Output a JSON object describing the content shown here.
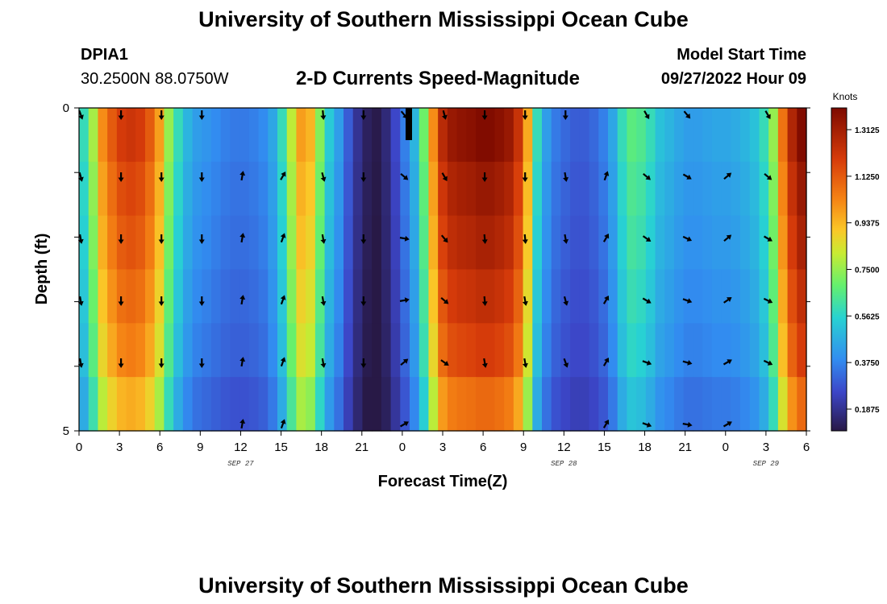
{
  "header": {
    "title": "University of Southern Mississippi Ocean Cube",
    "station": "DPIA1",
    "coords": "30.2500N  88.0750W",
    "subtitle": "2-D Currents Speed-Magnitude",
    "model_label": "Model Start Time",
    "model_time": "09/27/2022 Hour 09"
  },
  "footer": {
    "title": "University of Southern Mississippi Ocean Cube"
  },
  "chart_data": {
    "type": "heatmap",
    "title": "2-D Currents Speed-Magnitude",
    "xlabel": "Forecast Time(Z)",
    "ylabel": "Depth (ft)",
    "x_tick_labels": [
      "0",
      "3",
      "6",
      "9",
      "12",
      "15",
      "18",
      "21",
      "0",
      "3",
      "6",
      "9",
      "12",
      "15",
      "18",
      "21",
      "0",
      "3",
      "6"
    ],
    "day_labels": [
      {
        "label": "SEP 27",
        "at_tick": 4
      },
      {
        "label": "SEP 28",
        "at_tick": 12
      },
      {
        "label": "SEP 29",
        "at_tick": 17
      }
    ],
    "y_tick_labels": [
      "0",
      "5"
    ],
    "ylim": [
      0,
      5
    ],
    "colorbar": {
      "unit": "Knots",
      "min": 0.1,
      "max": 1.4,
      "tick_values": [
        0.1875,
        0.375,
        0.5625,
        0.75,
        0.9375,
        1.125,
        1.3125
      ],
      "tick_labels": [
        "0.1875",
        "0.3750",
        "0.5625",
        "0.7500",
        "0.9375",
        "1.1250",
        "1.3125"
      ]
    },
    "speed_profile_knots": [
      0.55,
      0.72,
      0.95,
      1.05,
      1.12,
      1.14,
      1.12,
      1.05,
      0.92,
      0.7,
      0.55,
      0.45,
      0.4,
      0.38,
      0.36,
      0.34,
      0.33,
      0.33,
      0.34,
      0.36,
      0.42,
      0.55,
      0.75,
      0.92,
      0.88,
      0.68,
      0.5,
      0.4,
      0.28,
      0.18,
      0.12,
      0.1,
      0.15,
      0.24,
      0.34,
      0.45,
      0.65,
      0.95,
      1.18,
      1.25,
      1.27,
      1.28,
      1.3,
      1.3,
      1.28,
      1.25,
      1.15,
      0.9,
      0.55,
      0.4,
      0.33,
      0.3,
      0.28,
      0.28,
      0.3,
      0.34,
      0.42,
      0.55,
      0.62,
      0.6,
      0.55,
      0.48,
      0.45,
      0.42,
      0.4,
      0.4,
      0.41,
      0.42,
      0.42,
      0.43,
      0.45,
      0.48,
      0.55,
      0.7,
      1.0,
      1.2,
      1.3
    ],
    "depth_factors": [
      1.07,
      1.03,
      1.0,
      0.96,
      0.92,
      0.84
    ],
    "arrow_columns": [
      "0",
      "3",
      "6",
      "9",
      "12",
      "15",
      "18",
      "21",
      "0",
      "3",
      "6",
      "9",
      "12",
      "15",
      "18",
      "21",
      "0",
      "3"
    ],
    "arrow_directions_deg": [
      [
        160,
        180,
        180,
        180,
        null,
        null,
        175,
        180,
        140,
        165,
        180,
        180,
        180,
        null,
        150,
        140,
        null,
        150
      ],
      [
        165,
        180,
        180,
        180,
        10,
        30,
        165,
        180,
        130,
        150,
        180,
        180,
        170,
        20,
        130,
        120,
        50,
        130
      ],
      [
        170,
        180,
        180,
        180,
        10,
        20,
        170,
        180,
        100,
        140,
        175,
        175,
        170,
        30,
        125,
        115,
        50,
        120
      ],
      [
        170,
        180,
        180,
        180,
        10,
        20,
        170,
        180,
        80,
        130,
        175,
        170,
        165,
        30,
        120,
        110,
        55,
        115
      ],
      [
        170,
        180,
        180,
        180,
        10,
        20,
        170,
        180,
        50,
        125,
        170,
        170,
        160,
        30,
        110,
        105,
        60,
        115
      ],
      [
        null,
        null,
        null,
        null,
        10,
        20,
        null,
        null,
        60,
        null,
        null,
        null,
        null,
        30,
        110,
        100,
        60,
        null
      ]
    ]
  }
}
